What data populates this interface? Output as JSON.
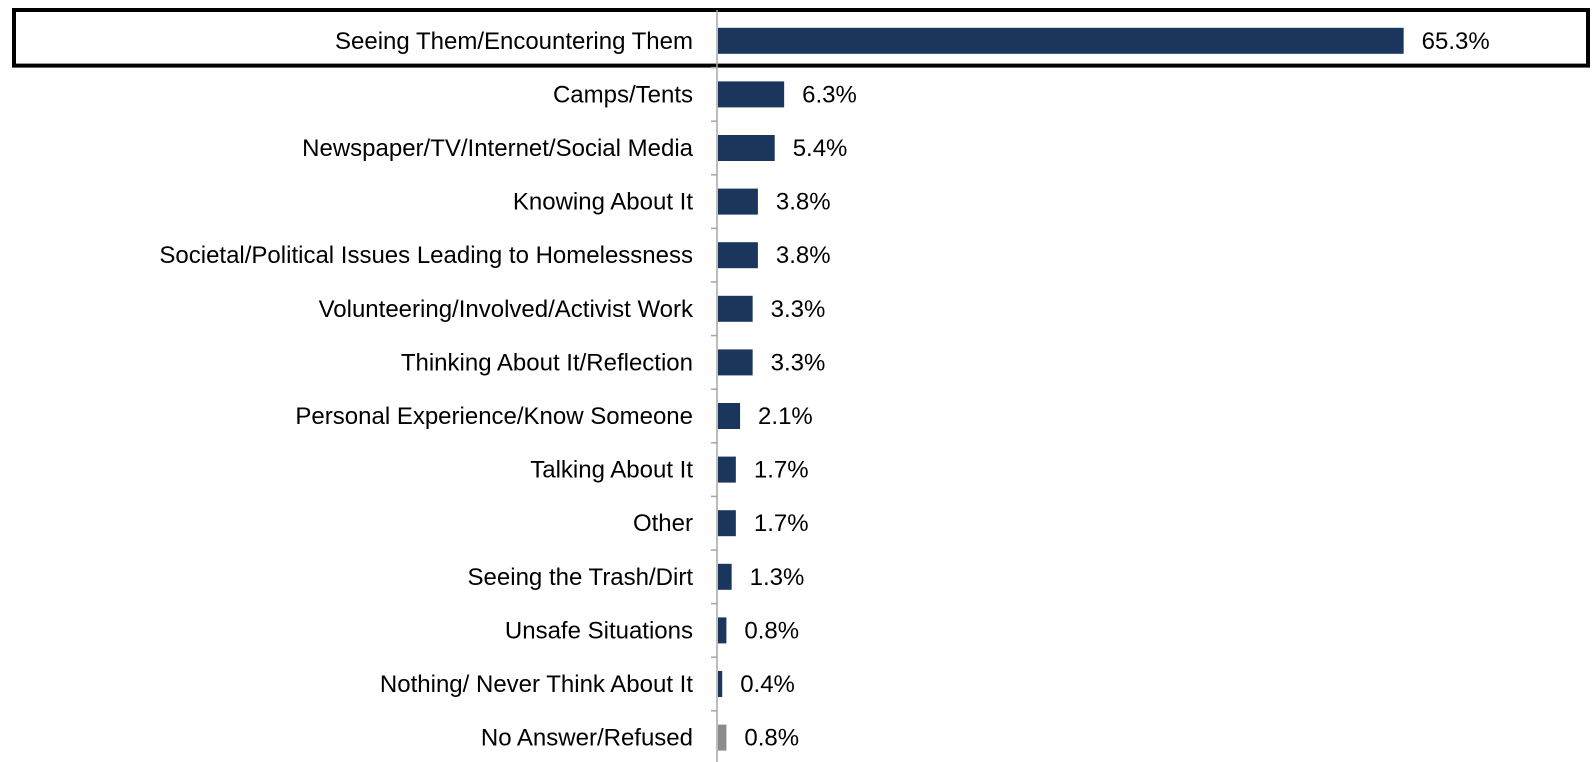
{
  "chart_data": {
    "type": "bar",
    "orientation": "horizontal",
    "categories": [
      "Seeing Them/Encountering Them",
      "Camps/Tents",
      "Newspaper/TV/Internet/Social Media",
      "Knowing About It",
      "Societal/Political Issues Leading to Homelessness",
      "Volunteering/Involved/Activist Work",
      "Thinking About It/Reflection",
      "Personal Experience/Know Someone",
      "Talking About It",
      "Other",
      "Seeing the Trash/Dirt",
      "Unsafe Situations",
      "Nothing/ Never Think About It",
      "No Answer/Refused"
    ],
    "values": [
      65.3,
      6.3,
      5.4,
      3.8,
      3.8,
      3.3,
      3.3,
      2.1,
      1.7,
      1.7,
      1.3,
      0.8,
      0.4,
      0.8
    ],
    "value_labels": [
      "65.3%",
      "6.3%",
      "5.4%",
      "3.8%",
      "3.8%",
      "3.3%",
      "3.3%",
      "2.1%",
      "1.7%",
      "1.7%",
      "1.3%",
      "0.8%",
      "0.4%",
      "0.8%"
    ],
    "bar_colors": [
      "#1b365d",
      "#1b365d",
      "#1b365d",
      "#1b365d",
      "#1b365d",
      "#1b365d",
      "#1b365d",
      "#1b365d",
      "#1b365d",
      "#1b365d",
      "#1b365d",
      "#1b365d",
      "#1b365d",
      "#8c8c8c"
    ],
    "highlighted_category": "Seeing Them/Encountering Them",
    "highlight_color": "#000000",
    "axis_color": "#a6a6a6",
    "xlim": [
      0,
      80
    ],
    "grid": false,
    "legend": "none",
    "title": "",
    "xlabel": "",
    "ylabel": ""
  }
}
